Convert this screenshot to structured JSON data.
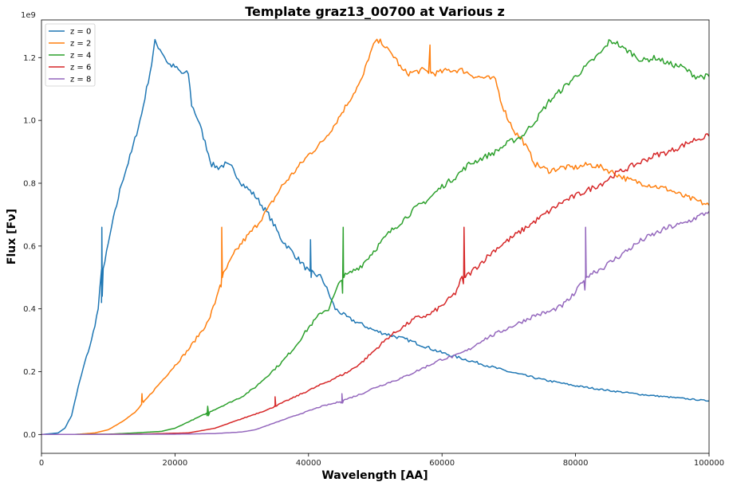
{
  "chart_data": {
    "type": "line",
    "title": "Template graz13_00700 at Various z",
    "xlabel": "Wavelength [AA]",
    "ylabel": "Flux [$F_\\nu$]",
    "ylabel_display": "Flux [Fν]",
    "y_multiplier_label": "1e9",
    "xlim": [
      0,
      100000
    ],
    "ylim": [
      -0.06,
      1.32
    ],
    "x_ticks": [
      0,
      20000,
      40000,
      60000,
      80000,
      100000
    ],
    "x_tick_labels": [
      "0",
      "20000",
      "40000",
      "60000",
      "80000",
      "100000"
    ],
    "y_ticks": [
      0.0,
      0.2,
      0.4,
      0.6,
      0.8,
      1.0,
      1.2
    ],
    "y_tick_labels": [
      "0.0",
      "0.2",
      "0.4",
      "0.6",
      "0.8",
      "1.0",
      "1.2"
    ],
    "grid": false,
    "legend_position": "top-left",
    "series": [
      {
        "name": "z = 0",
        "color": "#1f77b4",
        "points": [
          [
            0,
            0
          ],
          [
            2500,
            0.005
          ],
          [
            3500,
            0.02
          ],
          [
            4500,
            0.06
          ],
          [
            5500,
            0.15
          ],
          [
            6500,
            0.23
          ],
          [
            7500,
            0.3
          ],
          [
            8500,
            0.4
          ],
          [
            9000,
            0.52
          ],
          [
            9500,
            0.55
          ],
          [
            10500,
            0.66
          ],
          [
            12000,
            0.8
          ],
          [
            13500,
            0.9
          ],
          [
            15000,
            1.02
          ],
          [
            16500,
            1.18
          ],
          [
            17000,
            1.25
          ],
          [
            18000,
            1.22
          ],
          [
            19000,
            1.18
          ],
          [
            20000,
            1.17
          ],
          [
            21000,
            1.15
          ],
          [
            22000,
            1.15
          ],
          [
            22500,
            1.05
          ],
          [
            23500,
            1.0
          ],
          [
            24500,
            0.93
          ],
          [
            25500,
            0.86
          ],
          [
            26500,
            0.85
          ],
          [
            27500,
            0.86
          ],
          [
            28500,
            0.85
          ],
          [
            30000,
            0.8
          ],
          [
            32000,
            0.76
          ],
          [
            34000,
            0.7
          ],
          [
            36000,
            0.62
          ],
          [
            38000,
            0.57
          ],
          [
            40000,
            0.52
          ],
          [
            42000,
            0.5
          ],
          [
            43000,
            0.45
          ],
          [
            44000,
            0.4
          ],
          [
            46000,
            0.37
          ],
          [
            50000,
            0.33
          ],
          [
            55000,
            0.3
          ],
          [
            60000,
            0.26
          ],
          [
            65000,
            0.23
          ],
          [
            70000,
            0.2
          ],
          [
            75000,
            0.175
          ],
          [
            80000,
            0.155
          ],
          [
            85000,
            0.14
          ],
          [
            90000,
            0.127
          ],
          [
            95000,
            0.117
          ],
          [
            100000,
            0.107
          ]
        ]
      },
      {
        "name": "z = 2",
        "color": "#ff7f0e",
        "points": [
          [
            0,
            0
          ],
          [
            5000,
            0.0
          ],
          [
            8000,
            0.005
          ],
          [
            10000,
            0.015
          ],
          [
            12000,
            0.04
          ],
          [
            14000,
            0.07
          ],
          [
            16000,
            0.12
          ],
          [
            18000,
            0.17
          ],
          [
            20000,
            0.22
          ],
          [
            22000,
            0.27
          ],
          [
            24000,
            0.33
          ],
          [
            25000,
            0.36
          ],
          [
            26000,
            0.42
          ],
          [
            27000,
            0.5
          ],
          [
            28000,
            0.54
          ],
          [
            29000,
            0.58
          ],
          [
            30000,
            0.61
          ],
          [
            32000,
            0.66
          ],
          [
            34000,
            0.72
          ],
          [
            36000,
            0.79
          ],
          [
            38000,
            0.84
          ],
          [
            40000,
            0.89
          ],
          [
            42000,
            0.93
          ],
          [
            44000,
            0.99
          ],
          [
            46000,
            1.06
          ],
          [
            48000,
            1.13
          ],
          [
            49000,
            1.2
          ],
          [
            50000,
            1.25
          ],
          [
            51000,
            1.25
          ],
          [
            52000,
            1.22
          ],
          [
            53000,
            1.2
          ],
          [
            54000,
            1.16
          ],
          [
            55000,
            1.15
          ],
          [
            57000,
            1.16
          ],
          [
            59000,
            1.15
          ],
          [
            61000,
            1.16
          ],
          [
            63000,
            1.16
          ],
          [
            65000,
            1.14
          ],
          [
            68000,
            1.13
          ],
          [
            69000,
            1.05
          ],
          [
            70000,
            1.0
          ],
          [
            71000,
            0.96
          ],
          [
            72000,
            0.94
          ],
          [
            73000,
            0.9
          ],
          [
            74000,
            0.86
          ],
          [
            76000,
            0.84
          ],
          [
            78000,
            0.85
          ],
          [
            80000,
            0.85
          ],
          [
            82000,
            0.86
          ],
          [
            84000,
            0.85
          ],
          [
            86000,
            0.83
          ],
          [
            88000,
            0.81
          ],
          [
            90000,
            0.8
          ],
          [
            92000,
            0.79
          ],
          [
            94000,
            0.78
          ],
          [
            96000,
            0.76
          ],
          [
            98000,
            0.745
          ],
          [
            100000,
            0.73
          ]
        ]
      },
      {
        "name": "z = 4",
        "color": "#2ca02c",
        "points": [
          [
            0,
            0
          ],
          [
            10000,
            0.001
          ],
          [
            14000,
            0.005
          ],
          [
            18000,
            0.01
          ],
          [
            20000,
            0.02
          ],
          [
            22000,
            0.04
          ],
          [
            24000,
            0.06
          ],
          [
            26000,
            0.08
          ],
          [
            28000,
            0.1
          ],
          [
            30000,
            0.12
          ],
          [
            32000,
            0.15
          ],
          [
            34000,
            0.19
          ],
          [
            36000,
            0.23
          ],
          [
            38000,
            0.28
          ],
          [
            40000,
            0.34
          ],
          [
            42000,
            0.39
          ],
          [
            43000,
            0.4
          ],
          [
            44000,
            0.45
          ],
          [
            45000,
            0.5
          ],
          [
            46000,
            0.51
          ],
          [
            48000,
            0.54
          ],
          [
            50000,
            0.59
          ],
          [
            52000,
            0.64
          ],
          [
            54000,
            0.68
          ],
          [
            56000,
            0.72
          ],
          [
            58000,
            0.75
          ],
          [
            60000,
            0.79
          ],
          [
            62000,
            0.82
          ],
          [
            64000,
            0.86
          ],
          [
            66000,
            0.88
          ],
          [
            68000,
            0.9
          ],
          [
            70000,
            0.93
          ],
          [
            72000,
            0.95
          ],
          [
            74000,
            1.0
          ],
          [
            76000,
            1.06
          ],
          [
            78000,
            1.1
          ],
          [
            80000,
            1.14
          ],
          [
            82000,
            1.18
          ],
          [
            84000,
            1.22
          ],
          [
            85000,
            1.25
          ],
          [
            86000,
            1.25
          ],
          [
            87000,
            1.23
          ],
          [
            88000,
            1.22
          ],
          [
            90000,
            1.19
          ],
          [
            92000,
            1.2
          ],
          [
            94000,
            1.18
          ],
          [
            96000,
            1.17
          ],
          [
            98000,
            1.14
          ],
          [
            100000,
            1.14
          ]
        ]
      },
      {
        "name": "z = 6",
        "color": "#d62728",
        "points": [
          [
            0,
            0
          ],
          [
            14000,
            0.001
          ],
          [
            18000,
            0.003
          ],
          [
            22000,
            0.005
          ],
          [
            26000,
            0.02
          ],
          [
            28000,
            0.035
          ],
          [
            30000,
            0.05
          ],
          [
            32000,
            0.065
          ],
          [
            34000,
            0.08
          ],
          [
            36000,
            0.1
          ],
          [
            38000,
            0.12
          ],
          [
            40000,
            0.14
          ],
          [
            42000,
            0.16
          ],
          [
            44000,
            0.18
          ],
          [
            46000,
            0.2
          ],
          [
            48000,
            0.23
          ],
          [
            50000,
            0.27
          ],
          [
            52000,
            0.31
          ],
          [
            54000,
            0.34
          ],
          [
            56000,
            0.37
          ],
          [
            58000,
            0.38
          ],
          [
            60000,
            0.41
          ],
          [
            62000,
            0.45
          ],
          [
            63000,
            0.5
          ],
          [
            64000,
            0.51
          ],
          [
            66000,
            0.55
          ],
          [
            68000,
            0.59
          ],
          [
            70000,
            0.62
          ],
          [
            72000,
            0.65
          ],
          [
            74000,
            0.68
          ],
          [
            76000,
            0.71
          ],
          [
            78000,
            0.74
          ],
          [
            80000,
            0.76
          ],
          [
            82000,
            0.78
          ],
          [
            84000,
            0.8
          ],
          [
            86000,
            0.83
          ],
          [
            88000,
            0.85
          ],
          [
            90000,
            0.87
          ],
          [
            92000,
            0.89
          ],
          [
            94000,
            0.9
          ],
          [
            96000,
            0.92
          ],
          [
            98000,
            0.94
          ],
          [
            100000,
            0.95
          ]
        ]
      },
      {
        "name": "z = 8",
        "color": "#9467bd",
        "points": [
          [
            0,
            0
          ],
          [
            20000,
            0.001
          ],
          [
            26000,
            0.003
          ],
          [
            30000,
            0.008
          ],
          [
            32000,
            0.015
          ],
          [
            34000,
            0.03
          ],
          [
            36000,
            0.045
          ],
          [
            38000,
            0.06
          ],
          [
            40000,
            0.075
          ],
          [
            42000,
            0.09
          ],
          [
            44000,
            0.1
          ],
          [
            46000,
            0.115
          ],
          [
            48000,
            0.13
          ],
          [
            50000,
            0.15
          ],
          [
            52000,
            0.165
          ],
          [
            54000,
            0.18
          ],
          [
            56000,
            0.2
          ],
          [
            58000,
            0.22
          ],
          [
            60000,
            0.24
          ],
          [
            62000,
            0.25
          ],
          [
            64000,
            0.27
          ],
          [
            66000,
            0.3
          ],
          [
            68000,
            0.32
          ],
          [
            70000,
            0.34
          ],
          [
            72000,
            0.36
          ],
          [
            74000,
            0.38
          ],
          [
            76000,
            0.39
          ],
          [
            78000,
            0.41
          ],
          [
            79000,
            0.43
          ],
          [
            80000,
            0.45
          ],
          [
            81000,
            0.49
          ],
          [
            82000,
            0.51
          ],
          [
            84000,
            0.53
          ],
          [
            86000,
            0.56
          ],
          [
            88000,
            0.59
          ],
          [
            90000,
            0.62
          ],
          [
            92000,
            0.64
          ],
          [
            94000,
            0.66
          ],
          [
            96000,
            0.67
          ],
          [
            98000,
            0.69
          ],
          [
            100000,
            0.71
          ]
        ]
      }
    ],
    "emission_spikes": [
      {
        "series": "z = 0",
        "points": [
          [
            9000,
            0.42
          ],
          [
            9050,
            0.66
          ],
          [
            9100,
            0.44
          ],
          [
            40200,
            0.52
          ],
          [
            40300,
            0.62
          ],
          [
            40400,
            0.5
          ]
        ]
      },
      {
        "series": "z = 2",
        "points": [
          [
            15000,
            0.11
          ],
          [
            15050,
            0.13
          ],
          [
            15100,
            0.11
          ],
          [
            26900,
            0.47
          ],
          [
            27000,
            0.66
          ],
          [
            27100,
            0.5
          ],
          [
            58000,
            1.16
          ],
          [
            58200,
            1.24
          ],
          [
            58400,
            1.15
          ]
        ]
      },
      {
        "series": "z = 4",
        "points": [
          [
            24800,
            0.06
          ],
          [
            24900,
            0.09
          ],
          [
            25000,
            0.06
          ],
          [
            45100,
            0.45
          ],
          [
            45200,
            0.66
          ],
          [
            45300,
            0.5
          ]
        ]
      },
      {
        "series": "z = 6",
        "points": [
          [
            34900,
            0.09
          ],
          [
            35000,
            0.12
          ],
          [
            35100,
            0.09
          ],
          [
            63200,
            0.48
          ],
          [
            63300,
            0.66
          ],
          [
            63400,
            0.5
          ]
        ]
      },
      {
        "series": "z = 8",
        "points": [
          [
            44900,
            0.1
          ],
          [
            45000,
            0.13
          ],
          [
            45100,
            0.1
          ],
          [
            81400,
            0.46
          ],
          [
            81500,
            0.66
          ],
          [
            81600,
            0.5
          ]
        ]
      }
    ]
  }
}
